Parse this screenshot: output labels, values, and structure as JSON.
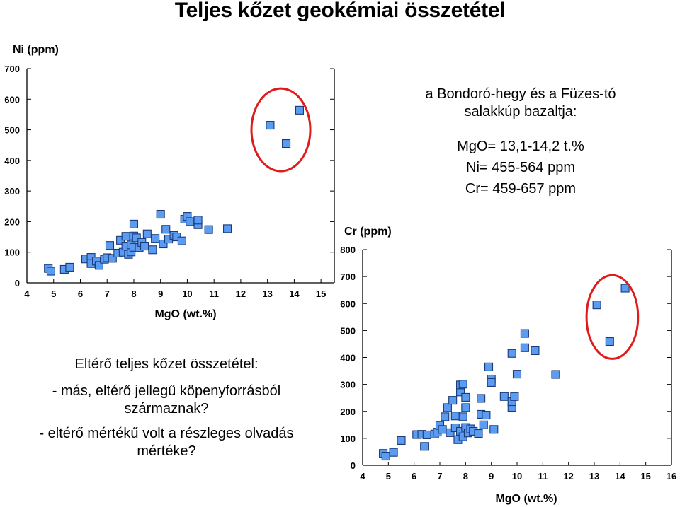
{
  "title": "Teljes kőzet geokémiai összetétel",
  "info": {
    "lines": [
      "a Bondoró-hegy és a Füzes-tó",
      "salakkúp bazaltja:",
      "MgO= 13,1-14,2 t.%",
      "Ni= 455-564 ppm",
      "Cr= 459-657 ppm"
    ]
  },
  "notes": {
    "heading": "Eltérő teljes kőzet összetétel:",
    "q1_line1": "- más, eltérő jellegű köpenyforrásból",
    "q1_line2": "származnak?",
    "q2_line1": "- eltérő mértékű volt a részleges olvadás",
    "q2_line2": "mértéke?"
  },
  "colors": {
    "marker_fill": "#5b9bf0",
    "marker_stroke": "#1a3a7a",
    "ellipse": "#e01b1b",
    "axis": "#000000"
  },
  "chart_data": [
    {
      "type": "scatter",
      "ylabel": "Ni (ppm)",
      "xlabel": "MgO (wt.%)",
      "xlim": [
        4,
        15.5
      ],
      "ylim": [
        0,
        700
      ],
      "xticks": [
        4,
        5,
        6,
        7,
        8,
        9,
        10,
        11,
        12,
        13,
        14,
        15
      ],
      "yticks": [
        0,
        100,
        200,
        300,
        400,
        500,
        600,
        700
      ],
      "highlight_ellipse": {
        "center": [
          13.5,
          500
        ],
        "radius": [
          1.1,
          135
        ]
      },
      "points": [
        [
          4.8,
          47
        ],
        [
          4.9,
          38
        ],
        [
          5.4,
          44
        ],
        [
          5.6,
          51
        ],
        [
          6.2,
          78
        ],
        [
          6.4,
          83
        ],
        [
          6.4,
          63
        ],
        [
          6.6,
          71
        ],
        [
          6.7,
          57
        ],
        [
          6.9,
          77
        ],
        [
          7.0,
          82
        ],
        [
          7.2,
          80
        ],
        [
          7.1,
          122
        ],
        [
          7.4,
          97
        ],
        [
          7.5,
          139
        ],
        [
          7.6,
          100
        ],
        [
          7.7,
          152
        ],
        [
          7.7,
          120
        ],
        [
          7.8,
          93
        ],
        [
          7.9,
          101
        ],
        [
          7.9,
          124
        ],
        [
          8.0,
          153
        ],
        [
          8.0,
          192
        ],
        [
          8.0,
          116
        ],
        [
          8.1,
          147
        ],
        [
          8.2,
          115
        ],
        [
          8.3,
          132
        ],
        [
          8.4,
          120
        ],
        [
          8.5,
          160
        ],
        [
          8.7,
          108
        ],
        [
          8.8,
          145
        ],
        [
          9.0,
          224
        ],
        [
          9.1,
          127
        ],
        [
          9.2,
          175
        ],
        [
          9.3,
          143
        ],
        [
          9.5,
          155
        ],
        [
          9.6,
          150
        ],
        [
          9.8,
          137
        ],
        [
          9.9,
          208
        ],
        [
          10.0,
          217
        ],
        [
          10.1,
          200
        ],
        [
          10.4,
          190
        ],
        [
          10.4,
          205
        ],
        [
          10.8,
          174
        ],
        [
          11.5,
          177
        ],
        [
          13.1,
          515
        ],
        [
          13.7,
          455
        ],
        [
          14.2,
          564
        ]
      ]
    },
    {
      "type": "scatter",
      "ylabel": "Cr (ppm)",
      "xlabel": "MgO (wt.%)",
      "xlim": [
        4,
        16
      ],
      "ylim": [
        0,
        800
      ],
      "xticks": [
        4,
        5,
        6,
        7,
        8,
        9,
        10,
        11,
        12,
        13,
        14,
        15,
        16
      ],
      "yticks": [
        0,
        100,
        200,
        300,
        400,
        500,
        600,
        700,
        800
      ],
      "highlight_ellipse": {
        "center": [
          13.7,
          550
        ],
        "radius": [
          1.0,
          155
        ]
      },
      "points": [
        [
          4.8,
          44
        ],
        [
          4.9,
          34
        ],
        [
          5.2,
          48
        ],
        [
          5.5,
          92
        ],
        [
          6.1,
          114
        ],
        [
          6.3,
          115
        ],
        [
          6.4,
          70
        ],
        [
          6.5,
          113
        ],
        [
          6.8,
          116
        ],
        [
          6.9,
          123
        ],
        [
          7.0,
          148
        ],
        [
          7.1,
          133
        ],
        [
          7.2,
          180
        ],
        [
          7.3,
          214
        ],
        [
          7.4,
          121
        ],
        [
          7.5,
          241
        ],
        [
          7.6,
          139
        ],
        [
          7.6,
          183
        ],
        [
          7.7,
          95
        ],
        [
          7.8,
          126
        ],
        [
          7.8,
          272
        ],
        [
          7.8,
          298
        ],
        [
          7.9,
          301
        ],
        [
          7.9,
          180
        ],
        [
          7.9,
          106
        ],
        [
          8.0,
          140
        ],
        [
          8.0,
          252
        ],
        [
          8.0,
          214
        ],
        [
          8.1,
          120
        ],
        [
          8.2,
          135
        ],
        [
          8.3,
          126
        ],
        [
          8.5,
          118
        ],
        [
          8.6,
          248
        ],
        [
          8.6,
          189
        ],
        [
          8.7,
          150
        ],
        [
          8.8,
          186
        ],
        [
          8.9,
          365
        ],
        [
          9.0,
          320
        ],
        [
          9.0,
          307
        ],
        [
          9.1,
          133
        ],
        [
          9.5,
          255
        ],
        [
          9.8,
          415
        ],
        [
          9.8,
          215
        ],
        [
          9.8,
          236
        ],
        [
          9.9,
          255
        ],
        [
          10.0,
          338
        ],
        [
          10.3,
          436
        ],
        [
          10.3,
          489
        ],
        [
          10.7,
          425
        ],
        [
          11.5,
          337
        ],
        [
          13.1,
          595
        ],
        [
          13.6,
          459
        ],
        [
          14.2,
          657
        ]
      ]
    }
  ]
}
